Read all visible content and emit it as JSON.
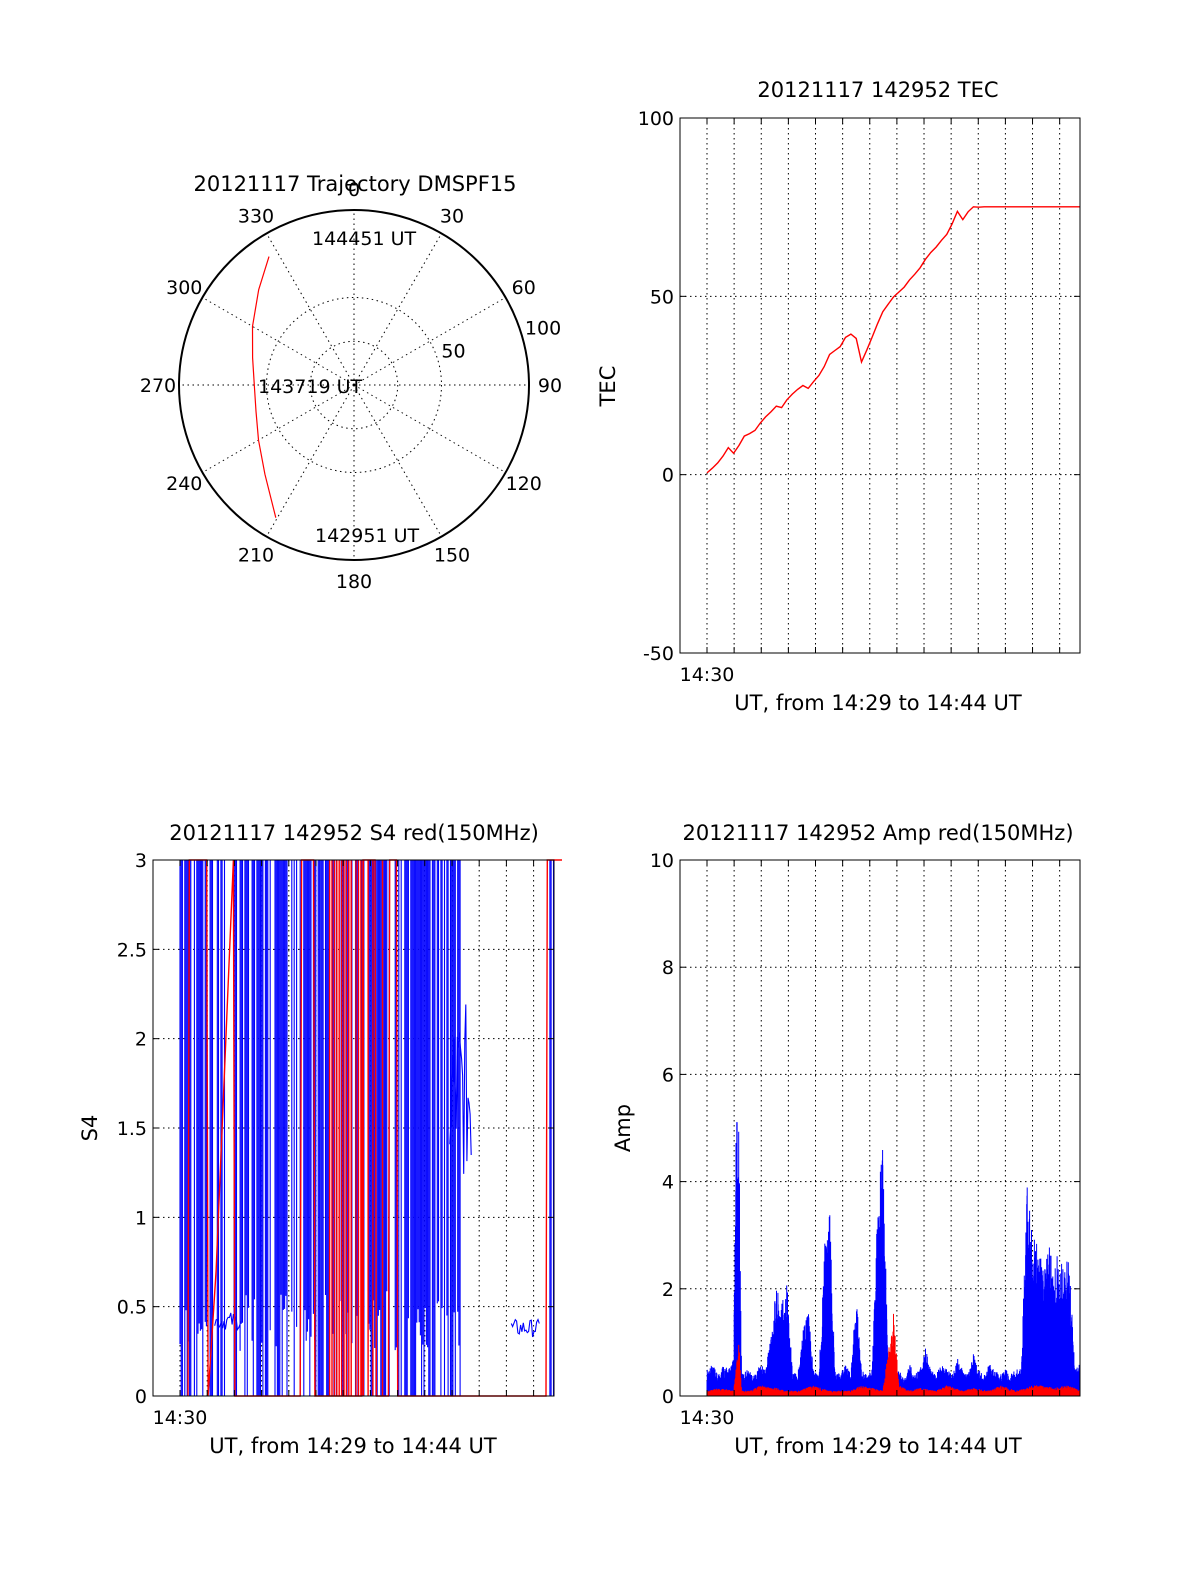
{
  "colors": {
    "red": "#ff0000",
    "blue": "#0000ff",
    "axis": "#000000"
  },
  "chart_data": [
    {
      "type": "polar",
      "title": "20121117 Trajectory DMSPF15",
      "azimuth_labels": [
        "0",
        "30",
        "60",
        "90",
        "120",
        "150",
        "180",
        "210",
        "240",
        "270",
        "300",
        "330"
      ],
      "radial_ticks": [
        {
          "value": 0,
          "label": ""
        },
        {
          "value": 50,
          "label": "50"
        },
        {
          "value": 100,
          "label": "100"
        }
      ],
      "rlim": [
        0,
        100
      ],
      "grid": true,
      "series": [
        {
          "color": "red",
          "points": [
            {
              "az": 210.5,
              "r": 88
            },
            {
              "az": 225,
              "r": 72
            },
            {
              "az": 240,
              "r": 63
            },
            {
              "az": 255,
              "r": 58
            },
            {
              "az": 270,
              "r": 57
            },
            {
              "az": 285,
              "r": 60
            },
            {
              "az": 300,
              "r": 67
            },
            {
              "az": 315,
              "r": 77
            },
            {
              "az": 326.5,
              "r": 88
            }
          ]
        }
      ],
      "annotations": [
        "144451 UT",
        "143719 UT",
        "142951 UT"
      ]
    },
    {
      "type": "line",
      "title": "20121117 142952 TEC",
      "ylabel": "TEC",
      "xlabel": "UT, from 14:29 to 14:44 UT",
      "xtick_labels": [
        "14:30"
      ],
      "ylim": [
        -50,
        100
      ],
      "yticks": [
        -50,
        0,
        50,
        100
      ],
      "grid": true,
      "series": [
        {
          "color": "red",
          "x": [
            0.0,
            0.2,
            0.4,
            0.6,
            0.8,
            1.0,
            1.2,
            1.4,
            1.6,
            1.8,
            2.0,
            2.2,
            2.4,
            2.6,
            2.8,
            3.0,
            3.2,
            3.4,
            3.6,
            3.8,
            4.0,
            4.2,
            4.4,
            4.6,
            4.8,
            5.0,
            5.2,
            5.4,
            5.6,
            5.8,
            6.0,
            6.2,
            6.4,
            6.6,
            6.8,
            7.0,
            7.2,
            7.4,
            7.6,
            7.8,
            8.0,
            8.2,
            8.4,
            8.6,
            8.8,
            9.0,
            9.2,
            9.4,
            9.6,
            9.8,
            10.0,
            10.2,
            10.4,
            10.6,
            10.8,
            11.0,
            11.2,
            11.4,
            11.6,
            11.8,
            12.0,
            12.2,
            12.4,
            12.6,
            12.8,
            13.0,
            13.2,
            13.4,
            13.6,
            13.8,
            14.0
          ],
          "y": [
            0.5,
            1.8,
            3.3,
            5.2,
            7.6,
            6.0,
            8.2,
            10.8,
            11.5,
            12.4,
            14.5,
            16.2,
            17.6,
            19.2,
            18.8,
            21.0,
            22.6,
            23.9,
            25.0,
            24.2,
            26.1,
            27.8,
            30.3,
            33.7,
            34.8,
            35.9,
            38.5,
            39.4,
            38.2,
            31.6,
            35.0,
            38.6,
            42.3,
            45.7,
            47.8,
            49.8,
            51.2,
            52.6,
            54.6,
            56.2,
            58.0,
            60.4,
            62.3,
            63.8,
            65.7,
            67.4,
            70.3,
            73.8,
            71.5,
            73.7,
            75.1,
            75.0,
            75.1,
            75.1,
            75.1,
            75.1,
            75.1,
            75.1,
            75.1,
            75.1,
            75.1,
            75.1,
            75.1,
            75.1,
            75.1,
            75.1,
            75.1,
            75.1,
            75.1,
            75.1,
            75.1
          ]
        }
      ]
    },
    {
      "type": "line",
      "title": "20121117 142952 S4 red(150MHz)",
      "ylabel": "S4",
      "xlabel": "UT, from 14:29 to 14:44 UT",
      "xtick_labels": [
        "14:30"
      ],
      "ylim": [
        0,
        3
      ],
      "yticks": [
        0,
        0.5,
        1,
        1.5,
        2,
        2.5,
        3
      ],
      "ytick_labels": [
        "0",
        "0.5",
        "1",
        "1.5",
        "2",
        "2.5",
        "3"
      ],
      "grid": true,
      "series": [
        {
          "color": "blue",
          "x": [
            0.0,
            0.25,
            0.5,
            0.75,
            1.0,
            1.25,
            1.5,
            1.75,
            2.0,
            2.25,
            2.5,
            2.75,
            3.0,
            3.25,
            3.5,
            3.75,
            4.0,
            4.25,
            4.5,
            4.75,
            5.0,
            5.25,
            5.5,
            5.75,
            6.0,
            6.25,
            6.5,
            6.75,
            7.0,
            7.25,
            7.5,
            7.75,
            8.0,
            8.25,
            8.5,
            8.75,
            9.0,
            9.25,
            9.5,
            9.75,
            10.0,
            10.25,
            10.5,
            10.75,
            11.0,
            11.25,
            11.5,
            11.75,
            12.0,
            12.25,
            12.5,
            12.75,
            13.0,
            13.25,
            13.5,
            13.75,
            14.0,
            14.25,
            14.5
          ],
          "y": [
            0.0,
            3.0,
            0.0,
            3.0,
            0.3,
            3.0,
            0.0,
            3.0,
            0.42,
            0.4,
            3.0,
            0.55,
            3.0,
            0.0,
            3.0,
            0.45,
            3.0,
            0.0,
            3.0,
            0.3,
            3.0,
            0.0,
            3.0,
            0.5,
            3.0,
            0.0,
            3.0,
            0.4,
            3.0,
            0.0,
            3.0,
            0.35,
            3.0,
            0.0,
            3.0,
            2.2,
            1.6,
            3.0,
            0.0,
            3.0,
            0.0,
            3.0,
            0.0,
            3.0,
            0.0,
            0.0,
            0.0,
            0.0,
            0.0,
            0.0,
            0.0,
            0.0,
            0.38,
            0.35,
            0.4,
            0.36,
            0.0,
            3.0,
            3.0
          ]
        },
        {
          "color": "red",
          "x": [
            0.3,
            0.35,
            1.0,
            1.05,
            1.35,
            2.0,
            2.05,
            4.5,
            4.55,
            5.0,
            5.05,
            6.8,
            6.85,
            7.3,
            7.35,
            7.8,
            7.85,
            8.1,
            8.15,
            13.7,
            13.75,
            14.3,
            14.35
          ],
          "y": [
            0.0,
            3.0,
            3.0,
            0.0,
            0.7,
            3.0,
            0.0,
            0.0,
            3.0,
            3.0,
            0.0,
            0.0,
            3.0,
            3.0,
            0.0,
            0.0,
            3.0,
            3.0,
            0.0,
            0.0,
            3.0,
            3.0,
            0.0
          ]
        }
      ]
    },
    {
      "type": "line",
      "title": "20121117 142952 Amp red(150MHz)",
      "ylabel": "Amp",
      "xlabel": "UT, from 14:29 to 14:44 UT",
      "xtick_labels": [
        "14:30"
      ],
      "ylim": [
        0,
        10
      ],
      "yticks": [
        0,
        2,
        4,
        6,
        8,
        10
      ],
      "grid": true,
      "series": [
        {
          "color": "blue",
          "x": [
            0.0,
            0.2,
            0.4,
            0.6,
            0.8,
            1.0,
            1.1,
            1.2,
            1.3,
            1.5,
            1.8,
            2.0,
            2.2,
            2.5,
            2.6,
            2.8,
            3.0,
            3.2,
            3.4,
            3.6,
            3.8,
            4.0,
            4.2,
            4.4,
            4.6,
            4.8,
            5.0,
            5.2,
            5.4,
            5.6,
            5.8,
            6.0,
            6.2,
            6.4,
            6.6,
            6.8,
            7.0,
            7.2,
            7.4,
            7.6,
            7.8,
            8.0,
            8.2,
            8.4,
            8.6,
            8.8,
            9.0,
            9.2,
            9.4,
            9.6,
            9.8,
            10.0,
            10.2,
            10.4,
            10.6,
            10.8,
            11.0,
            11.2,
            11.4,
            11.6,
            11.8,
            12.0,
            12.2,
            12.4,
            12.6,
            12.8,
            13.0,
            13.2,
            13.4,
            13.6,
            13.8,
            14.0
          ],
          "y": [
            0.5,
            0.6,
            0.4,
            0.6,
            0.5,
            0.7,
            5.3,
            4.9,
            0.4,
            0.5,
            0.4,
            0.6,
            0.5,
            1.6,
            2.0,
            1.8,
            2.2,
            0.5,
            0.4,
            1.3,
            1.6,
            0.5,
            0.4,
            2.8,
            3.6,
            0.5,
            0.4,
            0.6,
            0.4,
            1.9,
            0.5,
            0.4,
            0.5,
            3.6,
            4.8,
            0.5,
            0.4,
            0.5,
            0.3,
            0.6,
            0.4,
            0.5,
            0.9,
            0.5,
            0.4,
            0.6,
            0.5,
            0.4,
            0.7,
            0.5,
            0.4,
            0.8,
            0.5,
            0.4,
            0.6,
            0.5,
            0.4,
            0.5,
            0.4,
            0.5,
            0.5,
            4.0,
            3.1,
            2.8,
            2.5,
            2.9,
            2.4,
            2.7,
            2.3,
            2.7,
            0.5,
            0.6
          ]
        },
        {
          "color": "red",
          "x": [
            0.0,
            0.5,
            1.0,
            1.2,
            1.3,
            1.6,
            2.0,
            2.6,
            3.0,
            3.4,
            4.0,
            4.6,
            5.0,
            5.4,
            5.8,
            6.2,
            6.6,
            7.0,
            7.2,
            7.6,
            8.0,
            8.6,
            9.0,
            9.6,
            10.0,
            10.6,
            11.0,
            11.6,
            12.0,
            12.2,
            12.6,
            13.0,
            13.6,
            14.0
          ],
          "y": [
            0.1,
            0.15,
            0.1,
            1.0,
            0.1,
            0.1,
            0.2,
            0.15,
            0.1,
            0.1,
            0.2,
            0.1,
            0.1,
            0.1,
            0.2,
            0.15,
            0.1,
            1.6,
            0.2,
            0.1,
            0.15,
            0.1,
            0.2,
            0.1,
            0.15,
            0.1,
            0.2,
            0.1,
            0.15,
            0.2,
            0.2,
            0.15,
            0.2,
            0.1
          ]
        }
      ]
    }
  ]
}
